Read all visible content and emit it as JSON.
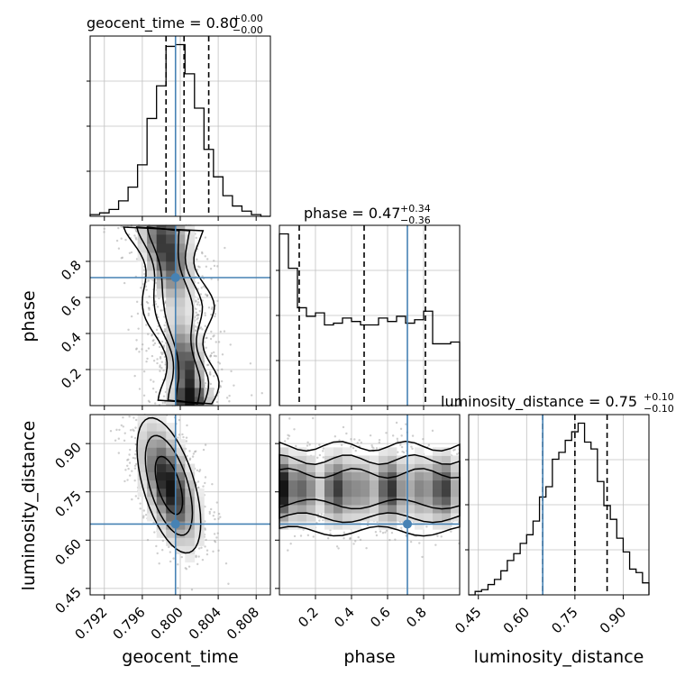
{
  "chart_data": {
    "type": "corner",
    "parameters": [
      "geocent_time",
      "phase",
      "luminosity_distance"
    ],
    "truth": {
      "geocent_time": 0.7995,
      "phase": 0.71,
      "luminosity_distance": 0.65
    },
    "colors": {
      "truth": "#4682b4",
      "hist": "#000000",
      "grid": "#c0c0c0",
      "points": "#9e9e9e"
    },
    "grid": true,
    "panels": {
      "hist_geocent_time": {
        "title": "geocent_time = 0.80",
        "title_plus": "+0.00",
        "title_minus": "−0.00",
        "xlim": [
          0.7905,
          0.8095
        ],
        "quantiles": [
          0.7985,
          0.8004,
          0.803
        ],
        "bins": [
          0.7905,
          0.7915,
          0.7925,
          0.7935,
          0.7945,
          0.7955,
          0.7965,
          0.7975,
          0.7985,
          0.7995,
          0.8005,
          0.8015,
          0.8025,
          0.8035,
          0.8045,
          0.8055,
          0.8065,
          0.8075,
          0.8085,
          0.8095
        ],
        "counts": [
          1,
          2,
          4,
          9,
          17,
          30,
          57,
          76,
          99,
          100,
          83,
          63,
          39,
          23,
          12,
          6,
          3,
          1,
          0
        ]
      },
      "hist_phase": {
        "title": "phase = 0.47",
        "title_plus": "+0.34",
        "title_minus": "−0.36",
        "xlim": [
          0.0,
          1.0
        ],
        "quantiles": [
          0.11,
          0.47,
          0.81
        ],
        "bins": [
          0.0,
          0.05,
          0.1,
          0.15,
          0.2,
          0.25,
          0.3,
          0.35,
          0.4,
          0.45,
          0.5,
          0.55,
          0.6,
          0.65,
          0.7,
          0.75,
          0.8,
          0.85,
          0.9,
          0.95,
          1.0
        ],
        "counts": [
          100,
          80,
          57,
          52,
          54,
          47,
          48,
          51,
          49,
          47,
          47,
          51,
          49,
          52,
          48,
          50,
          55,
          36,
          36,
          37
        ]
      },
      "hist_luminosity_distance": {
        "title": "luminosity_distance = 0.75",
        "title_plus": "+0.10",
        "title_minus": "−0.10",
        "xlim": [
          0.42,
          0.98
        ],
        "quantiles": [
          0.65,
          0.75,
          0.85
        ],
        "bins": [
          0.42,
          0.44,
          0.46,
          0.48,
          0.5,
          0.52,
          0.54,
          0.56,
          0.58,
          0.6,
          0.62,
          0.64,
          0.66,
          0.68,
          0.7,
          0.72,
          0.74,
          0.76,
          0.78,
          0.8,
          0.82,
          0.84,
          0.86,
          0.88,
          0.9,
          0.92,
          0.94,
          0.96,
          0.98
        ],
        "counts": [
          0,
          2,
          3,
          6,
          9,
          14,
          20,
          24,
          30,
          35,
          43,
          57,
          63,
          79,
          83,
          90,
          95,
          100,
          89,
          85,
          66,
          52,
          44,
          33,
          25,
          15,
          13,
          7
        ]
      },
      "phase_vs_geocent_time": {
        "xlim": [
          0.7905,
          0.8095
        ],
        "ylim": [
          0.0,
          1.0
        ],
        "ridge": [
          [
            0.0,
            0.8008
          ],
          [
            0.15,
            0.8008
          ],
          [
            0.35,
            0.8003
          ],
          [
            0.55,
            0.7998
          ],
          [
            0.75,
            0.799
          ],
          [
            0.95,
            0.7982
          ]
        ],
        "core": [
          {
            "x": 0.799,
            "y": 0.85
          },
          {
            "x": 0.7998,
            "y": 0.7
          },
          {
            "x": 0.801,
            "y": 0.05
          }
        ]
      },
      "luminosity_distance_vs_geocent_time": {
        "xlim": [
          0.7905,
          0.8095
        ],
        "ylim": [
          0.43,
          0.99
        ],
        "center": [
          0.7988,
          0.77
        ],
        "spread": [
          0.0016,
          0.1
        ],
        "correlation": -0.55
      },
      "luminosity_distance_vs_phase": {
        "xlim": [
          0.0,
          1.0
        ],
        "ylim": [
          0.43,
          0.99
        ],
        "center": [
          0.5,
          0.76
        ],
        "spread": [
          0.3,
          0.06
        ]
      }
    },
    "xlabels": [
      "geocent_time",
      "phase",
      "luminosity_distance"
    ],
    "ylabels": [
      "phase",
      "luminosity_distance"
    ],
    "xticks": {
      "geocent_time": [
        "0.792",
        "0.796",
        "0.800",
        "0.804",
        "0.808"
      ],
      "phase": [
        "0.2",
        "0.4",
        "0.6",
        "0.8"
      ],
      "luminosity_distance": [
        "0.45",
        "0.60",
        "0.75",
        "0.90"
      ]
    },
    "yticks": {
      "phase": [
        "0.2",
        "0.4",
        "0.6",
        "0.8"
      ],
      "luminosity_distance": [
        "0.45",
        "0.60",
        "0.75",
        "0.90"
      ]
    }
  }
}
